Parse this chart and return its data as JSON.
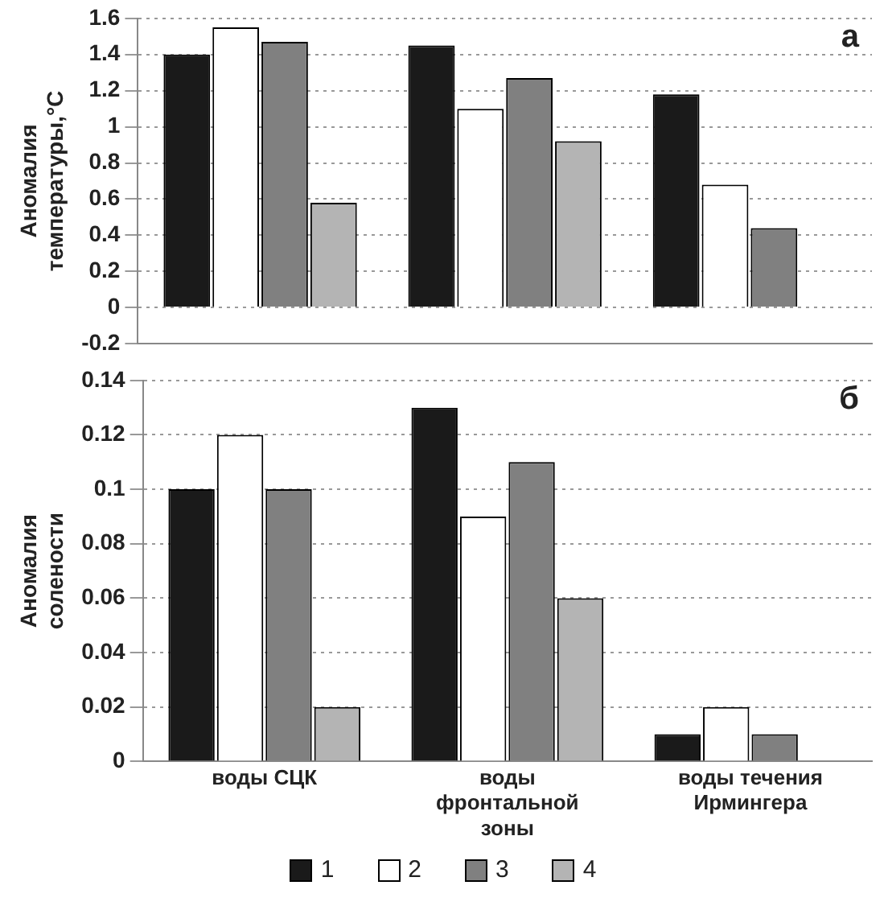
{
  "chart_data": [
    {
      "type": "bar",
      "ylabel": "Аномалия температуры,°C",
      "annotations": [
        "а"
      ],
      "categories": [
        null,
        null,
        null
      ],
      "ylim": [
        -0.2,
        1.6
      ],
      "yticks": [
        -0.2,
        0,
        0.2,
        0.4,
        0.6,
        0.8,
        1,
        1.2,
        1.4,
        1.6
      ],
      "grid": "y",
      "tick_labels": "y",
      "legend": false,
      "series": [
        {
          "color": "#1a1a1a",
          "values": [
            1.4,
            1.45,
            1.18
          ]
        },
        {
          "color": "#ffffff",
          "values": [
            1.55,
            1.1,
            0.68
          ]
        },
        {
          "color": "#808080",
          "values": [
            1.47,
            1.27,
            0.44
          ]
        },
        {
          "color": "#b4b4b4",
          "values": [
            0.58,
            0.92,
            0
          ]
        }
      ]
    },
    {
      "type": "bar",
      "ylabel": "Аномалия солености",
      "annotations": [
        "б"
      ],
      "categories": [
        "воды СЦК",
        "воды фронтальной зоны",
        "воды течения Ирмингера"
      ],
      "ylim": [
        0,
        0.14
      ],
      "yticks": [
        0,
        0.02,
        0.04,
        0.06,
        0.08,
        0.1,
        0.12,
        0.14
      ],
      "grid": "y",
      "legend": "bottom",
      "series": [
        {
          "name": "1",
          "color": "#1a1a1a",
          "values": [
            0.1,
            0.13,
            0.01
          ]
        },
        {
          "name": "2",
          "color": "#ffffff",
          "values": [
            0.12,
            0.09,
            0.02
          ]
        },
        {
          "name": "3",
          "color": "#808080",
          "values": [
            0.1,
            0.11,
            0.01
          ]
        },
        {
          "name": "4",
          "color": "#b4b4b4",
          "values": [
            0.02,
            0.06,
            0
          ]
        }
      ]
    }
  ]
}
